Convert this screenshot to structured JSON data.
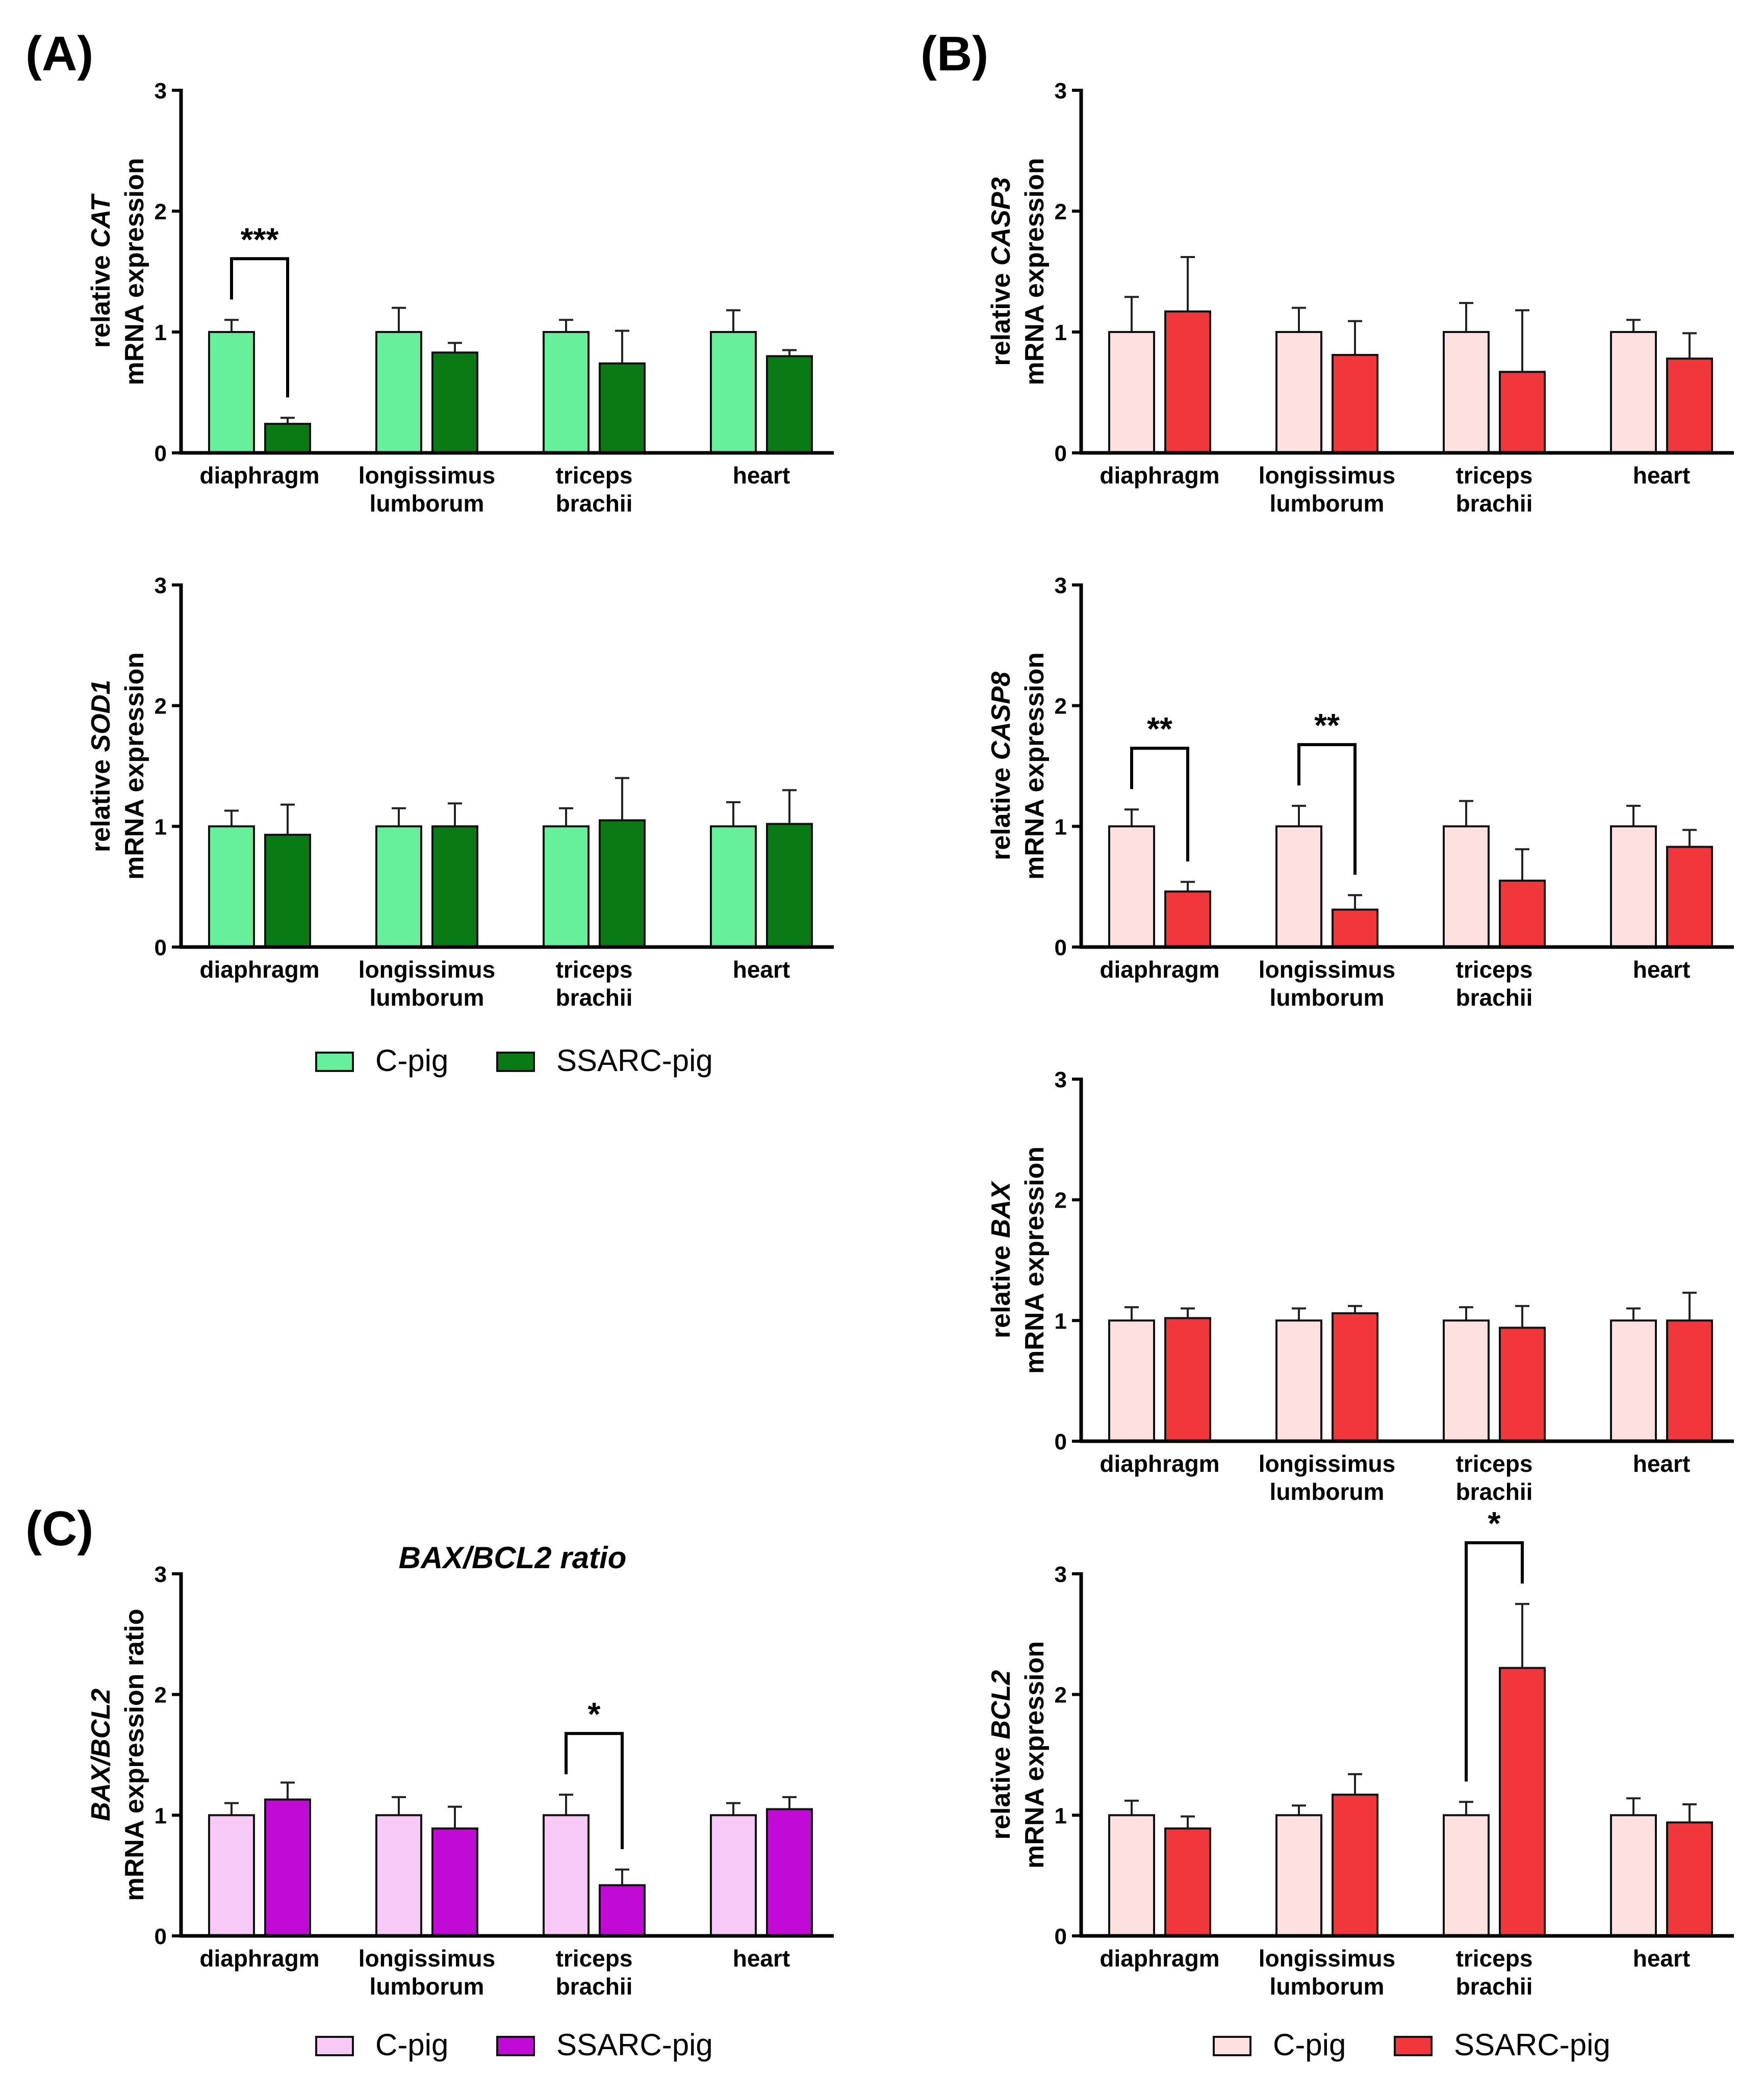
{
  "panels": [
    {
      "label": "(A)"
    },
    {
      "label": "(B)"
    },
    {
      "label": "(C)"
    }
  ],
  "legends": [
    {
      "items": [
        {
          "name": "C-pig",
          "color": "#66f09b"
        },
        {
          "name": "SSARC-pig",
          "color": "#0a7a14"
        }
      ]
    },
    {
      "items": [
        {
          "name": "C-pig",
          "color": "#f7c9f7"
        },
        {
          "name": "SSARC-pig",
          "color": "#c20ad6"
        }
      ]
    },
    {
      "items": [
        {
          "name": "C-pig",
          "color": "#ffe0e0"
        },
        {
          "name": "SSARC-pig",
          "color": "#f2373c"
        }
      ]
    }
  ],
  "chart_data": [
    {
      "type": "bar",
      "panel": "A",
      "title": "",
      "ylabel_lines": [
        [
          "relative ",
          "CAT"
        ],
        [
          "mRNA expression"
        ]
      ],
      "ylim": [
        0,
        3
      ],
      "yticks": [
        0,
        1,
        2,
        3
      ],
      "categories": [
        [
          "diaphragm"
        ],
        [
          "longissimus",
          "lumborum"
        ],
        [
          "triceps",
          "brachii"
        ],
        [
          "heart"
        ]
      ],
      "colors": [
        "#66f09b",
        "#0a7a14"
      ],
      "series": [
        {
          "name": "C-pig",
          "values": [
            1.0,
            1.0,
            1.0,
            1.0
          ],
          "errors": [
            0.1,
            0.2,
            0.1,
            0.18
          ]
        },
        {
          "name": "SSARC-pig",
          "values": [
            0.24,
            0.83,
            0.74,
            0.8
          ],
          "errors": [
            0.05,
            0.08,
            0.27,
            0.05
          ]
        }
      ],
      "significance": [
        {
          "category": 0,
          "label": "***"
        }
      ]
    },
    {
      "type": "bar",
      "panel": "A",
      "title": "",
      "ylabel_lines": [
        [
          "relative ",
          "SOD1"
        ],
        [
          "mRNA expression"
        ]
      ],
      "ylim": [
        0,
        3
      ],
      "yticks": [
        0,
        1,
        2,
        3
      ],
      "categories": [
        [
          "diaphragm"
        ],
        [
          "longissimus",
          "lumborum"
        ],
        [
          "triceps",
          "brachii"
        ],
        [
          "heart"
        ]
      ],
      "colors": [
        "#66f09b",
        "#0a7a14"
      ],
      "series": [
        {
          "name": "C-pig",
          "values": [
            1.0,
            1.0,
            1.0,
            1.0
          ],
          "errors": [
            0.13,
            0.15,
            0.15,
            0.2
          ]
        },
        {
          "name": "SSARC-pig",
          "values": [
            0.93,
            1.0,
            1.05,
            1.02
          ],
          "errors": [
            0.25,
            0.19,
            0.35,
            0.28
          ]
        }
      ],
      "significance": []
    },
    {
      "type": "bar",
      "panel": "B",
      "title": "",
      "ylabel_lines": [
        [
          "relative ",
          "CASP3"
        ],
        [
          "mRNA expression"
        ]
      ],
      "ylim": [
        0,
        3
      ],
      "yticks": [
        0,
        1,
        2,
        3
      ],
      "categories": [
        [
          "diaphragm"
        ],
        [
          "longissimus",
          "lumborum"
        ],
        [
          "triceps",
          "brachii"
        ],
        [
          "heart"
        ]
      ],
      "colors": [
        "#ffe0e0",
        "#f2373c"
      ],
      "series": [
        {
          "name": "C-pig",
          "values": [
            1.0,
            1.0,
            1.0,
            1.0
          ],
          "errors": [
            0.29,
            0.2,
            0.24,
            0.1
          ]
        },
        {
          "name": "SSARC-pig",
          "values": [
            1.17,
            0.81,
            0.67,
            0.78
          ],
          "errors": [
            0.45,
            0.28,
            0.51,
            0.21
          ]
        }
      ],
      "significance": []
    },
    {
      "type": "bar",
      "panel": "B",
      "title": "",
      "ylabel_lines": [
        [
          "relative ",
          "CASP8"
        ],
        [
          "mRNA expression"
        ]
      ],
      "ylim": [
        0,
        3
      ],
      "yticks": [
        0,
        1,
        2,
        3
      ],
      "categories": [
        [
          "diaphragm"
        ],
        [
          "longissimus",
          "lumborum"
        ],
        [
          "triceps",
          "brachii"
        ],
        [
          "heart"
        ]
      ],
      "colors": [
        "#ffe0e0",
        "#f2373c"
      ],
      "series": [
        {
          "name": "C-pig",
          "values": [
            1.0,
            1.0,
            1.0,
            1.0
          ],
          "errors": [
            0.14,
            0.17,
            0.21,
            0.17
          ]
        },
        {
          "name": "SSARC-pig",
          "values": [
            0.46,
            0.31,
            0.55,
            0.83
          ],
          "errors": [
            0.08,
            0.12,
            0.26,
            0.14
          ]
        }
      ],
      "significance": [
        {
          "category": 0,
          "label": "**"
        },
        {
          "category": 1,
          "label": "**"
        }
      ]
    },
    {
      "type": "bar",
      "panel": "B",
      "title": "",
      "ylabel_lines": [
        [
          "relative ",
          "BAX"
        ],
        [
          "mRNA expression"
        ]
      ],
      "ylim": [
        0,
        3
      ],
      "yticks": [
        0,
        1,
        2,
        3
      ],
      "categories": [
        [
          "diaphragm"
        ],
        [
          "longissimus",
          "lumborum"
        ],
        [
          "triceps",
          "brachii"
        ],
        [
          "heart"
        ]
      ],
      "colors": [
        "#ffe0e0",
        "#f2373c"
      ],
      "series": [
        {
          "name": "C-pig",
          "values": [
            1.0,
            1.0,
            1.0,
            1.0
          ],
          "errors": [
            0.11,
            0.1,
            0.11,
            0.1
          ]
        },
        {
          "name": "SSARC-pig",
          "values": [
            1.02,
            1.06,
            0.94,
            1.0
          ],
          "errors": [
            0.08,
            0.06,
            0.18,
            0.23
          ]
        }
      ],
      "significance": []
    },
    {
      "type": "bar",
      "panel": "B",
      "title": "",
      "ylabel_lines": [
        [
          "relative ",
          "BCL2"
        ],
        [
          "mRNA expression"
        ]
      ],
      "ylim": [
        0,
        3
      ],
      "yticks": [
        0,
        1,
        2,
        3
      ],
      "categories": [
        [
          "diaphragm"
        ],
        [
          "longissimus",
          "lumborum"
        ],
        [
          "triceps",
          "brachii"
        ],
        [
          "heart"
        ]
      ],
      "colors": [
        "#ffe0e0",
        "#f2373c"
      ],
      "series": [
        {
          "name": "C-pig",
          "values": [
            1.0,
            1.0,
            1.0,
            1.0
          ],
          "errors": [
            0.12,
            0.08,
            0.11,
            0.14
          ]
        },
        {
          "name": "SSARC-pig",
          "values": [
            0.89,
            1.17,
            2.22,
            0.94
          ],
          "errors": [
            0.1,
            0.17,
            0.53,
            0.15
          ]
        }
      ],
      "significance": [
        {
          "category": 2,
          "label": "*"
        }
      ]
    },
    {
      "type": "bar",
      "panel": "C",
      "title": "BAX/BCL2 ratio",
      "ylabel_lines": [
        [
          "BAX/BCL2"
        ],
        [
          "mRNA expression ratio"
        ]
      ],
      "ylim": [
        0,
        3
      ],
      "yticks": [
        0,
        1,
        2,
        3
      ],
      "categories": [
        [
          "diaphragm"
        ],
        [
          "longissimus",
          "lumborum"
        ],
        [
          "triceps",
          "brachii"
        ],
        [
          "heart"
        ]
      ],
      "colors": [
        "#f7c9f7",
        "#c20ad6"
      ],
      "series": [
        {
          "name": "C-pig",
          "values": [
            1.0,
            1.0,
            1.0,
            1.0
          ],
          "errors": [
            0.1,
            0.15,
            0.17,
            0.1
          ]
        },
        {
          "name": "SSARC-pig",
          "values": [
            1.13,
            0.89,
            0.42,
            1.05
          ],
          "errors": [
            0.14,
            0.18,
            0.13,
            0.1
          ]
        }
      ],
      "significance": [
        {
          "category": 2,
          "label": "*"
        }
      ]
    }
  ]
}
